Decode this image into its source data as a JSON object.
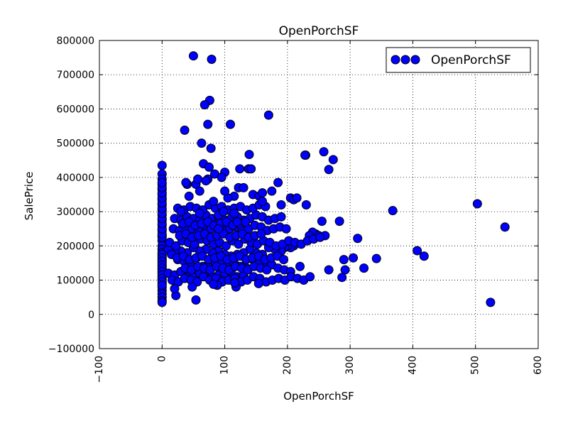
{
  "chart_data": {
    "type": "scatter",
    "title": "OpenPorchSF",
    "xlabel": "OpenPorchSF",
    "ylabel": "SalePrice",
    "xlim": [
      -100,
      600
    ],
    "ylim": [
      -100000,
      800000
    ],
    "xticks": [
      -100,
      0,
      100,
      200,
      300,
      400,
      500,
      600
    ],
    "yticks": [
      -100000,
      0,
      100000,
      200000,
      300000,
      400000,
      500000,
      600000,
      700000,
      800000
    ],
    "xtick_labels": [
      "−100",
      "0",
      "100",
      "200",
      "300",
      "400",
      "500",
      "600"
    ],
    "ytick_labels": [
      "−100000",
      "0",
      "100000",
      "200000",
      "300000",
      "400000",
      "500000",
      "600000",
      "700000",
      "800000"
    ],
    "grid": true,
    "legend": {
      "position": "top-right",
      "entries": [
        "OpenPorchSF"
      ]
    },
    "marker_color": "#0000ff",
    "series": [
      {
        "name": "OpenPorchSF",
        "x": [
          0,
          0,
          0,
          0,
          0,
          0,
          0,
          0,
          0,
          0,
          0,
          0,
          0,
          0,
          0,
          0,
          0,
          0,
          0,
          0,
          0,
          0,
          0,
          0,
          0,
          0,
          0,
          0,
          0,
          0,
          0,
          0,
          0,
          0,
          0,
          0,
          0,
          0,
          0,
          0,
          0,
          0,
          0,
          0,
          0,
          0,
          0,
          0,
          0,
          0,
          0,
          0,
          0,
          0,
          0,
          50,
          79,
          76,
          68,
          73,
          170,
          109,
          36,
          63,
          78,
          229,
          258,
          139,
          273,
          266,
          228,
          138,
          142,
          66,
          100,
          75,
          73,
          54,
          57,
          40,
          84,
          95,
          124,
          145,
          155,
          115,
          105,
          122,
          160,
          175,
          185,
          205,
          210,
          215,
          230,
          368,
          503,
          547,
          407,
          418,
          524,
          312,
          322,
          305,
          342,
          290,
          292,
          266,
          287,
          283,
          255,
          245,
          240,
          235,
          250,
          260,
          210,
          205,
          200,
          195,
          190,
          180,
          170,
          160,
          150,
          140,
          130,
          120,
          110,
          100,
          90,
          80,
          70,
          60,
          50,
          40,
          30,
          20,
          10,
          15,
          25,
          35,
          45,
          55,
          65,
          75,
          85,
          95,
          105,
          115,
          125,
          135,
          145,
          155,
          165,
          175,
          185,
          195,
          205,
          220,
          12,
          22,
          32,
          42,
          52,
          62,
          72,
          82,
          92,
          102,
          112,
          122,
          132,
          142,
          152,
          162,
          172,
          182,
          192,
          202,
          212,
          222,
          232,
          242,
          252,
          18,
          28,
          38,
          48,
          58,
          68,
          78,
          88,
          98,
          108,
          118,
          128,
          138,
          148,
          158,
          168,
          178,
          188,
          198,
          20,
          30,
          40,
          50,
          60,
          70,
          80,
          90,
          100,
          110,
          120,
          130,
          140,
          150,
          160,
          170,
          180,
          190,
          25,
          35,
          45,
          55,
          65,
          75,
          85,
          95,
          105,
          115,
          125,
          135,
          145,
          155,
          165,
          10,
          20,
          30,
          40,
          50,
          60,
          70,
          80,
          90,
          100,
          110,
          120,
          130,
          16,
          26,
          36,
          46,
          56,
          66,
          76,
          86,
          96,
          106,
          116,
          126,
          136,
          146,
          156,
          166,
          176,
          186,
          196,
          206,
          216,
          226,
          236,
          24,
          34,
          44,
          54,
          64,
          74,
          84,
          94,
          104,
          114,
          124,
          134,
          144,
          154,
          164,
          174,
          184,
          194,
          28,
          38,
          48,
          58,
          68,
          78,
          88,
          98,
          108,
          118,
          128,
          138,
          148,
          158,
          33,
          43,
          53,
          63,
          73,
          83,
          93,
          103,
          113,
          123,
          133,
          37,
          47,
          57,
          67,
          77,
          87,
          97,
          107,
          117,
          127,
          137,
          147,
          157,
          167,
          22,
          54,
          88,
          118,
          154,
          20,
          48,
          82,
          116,
          40,
          70,
          100,
          130,
          160,
          190,
          30,
          60,
          90,
          120,
          43,
          60,
          82,
          98,
          115,
          38,
          90,
          120
        ],
        "y": [
          435000,
          410000,
          395000,
          380000,
          365000,
          350000,
          335000,
          320000,
          305000,
          290000,
          275000,
          260000,
          245000,
          230000,
          215000,
          200000,
          190000,
          180000,
          170000,
          160000,
          150000,
          140000,
          130000,
          120000,
          110000,
          100000,
          90000,
          80000,
          70000,
          60000,
          50000,
          40000,
          35000,
          225000,
          235000,
          250000,
          265000,
          280000,
          295000,
          310000,
          325000,
          340000,
          355000,
          370000,
          385000,
          175000,
          165000,
          155000,
          145000,
          135000,
          125000,
          115000,
          105000,
          95000,
          85000,
          755000,
          745000,
          625000,
          612000,
          555000,
          582000,
          555000,
          538000,
          500000,
          485000,
          465000,
          475000,
          467000,
          452000,
          423000,
          465000,
          425000,
          425000,
          440000,
          415000,
          430000,
          395000,
          380000,
          395000,
          380000,
          410000,
          400000,
          425000,
          350000,
          345000,
          345000,
          340000,
          370000,
          355000,
          360000,
          385000,
          340000,
          335000,
          340000,
          320000,
          303000,
          323000,
          255000,
          186000,
          170000,
          35000,
          222000,
          135000,
          165000,
          163000,
          160000,
          130000,
          130000,
          108000,
          272000,
          272000,
          235000,
          240000,
          230000,
          230000,
          230000,
          200000,
          195000,
          200000,
          195000,
          185000,
          190000,
          195000,
          175000,
          180000,
          190000,
          180000,
          175000,
          170000,
          175000,
          185000,
          180000,
          190000,
          185000,
          195000,
          180000,
          185000,
          180000,
          190000,
          175000,
          160000,
          155000,
          150000,
          165000,
          140000,
          145000,
          150000,
          155000,
          145000,
          150000,
          140000,
          135000,
          160000,
          150000,
          140000,
          145000,
          135000,
          130000,
          125000,
          140000,
          210000,
          200000,
          215000,
          210000,
          205000,
          220000,
          215000,
          205000,
          210000,
          200000,
          215000,
          205000,
          220000,
          210000,
          205000,
          215000,
          210000,
          200000,
          205000,
          215000,
          210000,
          205000,
          215000,
          220000,
          225000,
          250000,
          245000,
          255000,
          250000,
          245000,
          260000,
          250000,
          255000,
          245000,
          250000,
          255000,
          245000,
          250000,
          260000,
          255000,
          245000,
          250000,
          255000,
          250000,
          280000,
          275000,
          285000,
          280000,
          275000,
          290000,
          280000,
          285000,
          275000,
          280000,
          285000,
          275000,
          280000,
          290000,
          285000,
          275000,
          280000,
          285000,
          310000,
          305000,
          315000,
          310000,
          305000,
          320000,
          310000,
          315000,
          305000,
          310000,
          315000,
          305000,
          310000,
          320000,
          315000,
          120000,
          115000,
          125000,
          110000,
          115000,
          120000,
          125000,
          110000,
          115000,
          120000,
          125000,
          110000,
          115000,
          100000,
          95000,
          105000,
          100000,
          95000,
          110000,
          100000,
          105000,
          95000,
          100000,
          105000,
          95000,
          100000,
          110000,
          105000,
          95000,
          100000,
          105000,
          100000,
          110000,
          105000,
          100000,
          110000,
          165000,
          170000,
          160000,
          165000,
          170000,
          160000,
          165000,
          170000,
          160000,
          165000,
          170000,
          160000,
          165000,
          170000,
          160000,
          165000,
          170000,
          160000,
          230000,
          235000,
          225000,
          230000,
          235000,
          225000,
          230000,
          235000,
          225000,
          230000,
          235000,
          225000,
          230000,
          235000,
          265000,
          270000,
          260000,
          265000,
          270000,
          260000,
          265000,
          270000,
          260000,
          265000,
          270000,
          135000,
          130000,
          140000,
          135000,
          130000,
          140000,
          135000,
          130000,
          140000,
          135000,
          130000,
          140000,
          135000,
          130000,
          55000,
          42000,
          85000,
          80000,
          90000,
          75000,
          80000,
          88000,
          92000,
          380000,
          390000,
          360000,
          370000,
          330000,
          320000,
          300000,
          295000,
          290000,
          285000,
          345000,
          360000,
          330000,
          300000,
          295000,
          385000,
          250000,
          270000
        ]
      }
    ]
  }
}
